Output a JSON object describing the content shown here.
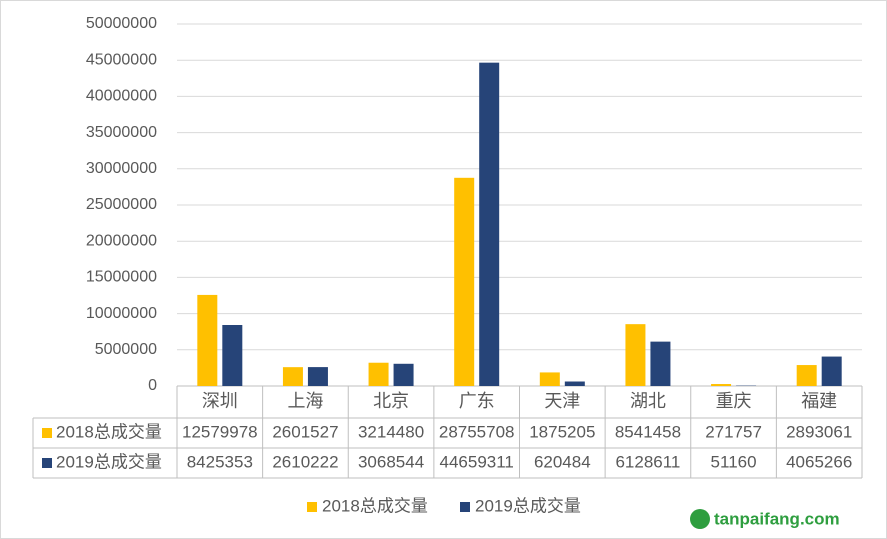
{
  "chart_data": {
    "type": "bar",
    "categories": [
      "深圳",
      "上海",
      "北京",
      "广东",
      "天津",
      "湖北",
      "重庆",
      "福建"
    ],
    "series": [
      {
        "name": "2018总成交量",
        "color": "#ffc000",
        "values": [
          12579978,
          2601527,
          3214480,
          28755708,
          1875205,
          8541458,
          271757,
          2893061
        ]
      },
      {
        "name": "2019总成交量",
        "color": "#264478",
        "values": [
          8425353,
          2610222,
          3068544,
          44659311,
          620484,
          6128611,
          51160,
          4065266
        ]
      }
    ],
    "ylim": [
      0,
      50000000
    ],
    "yticks": [
      0,
      5000000,
      10000000,
      15000000,
      20000000,
      25000000,
      30000000,
      35000000,
      40000000,
      45000000,
      50000000
    ],
    "grid": true,
    "watermark": "tanpaifang.com"
  }
}
